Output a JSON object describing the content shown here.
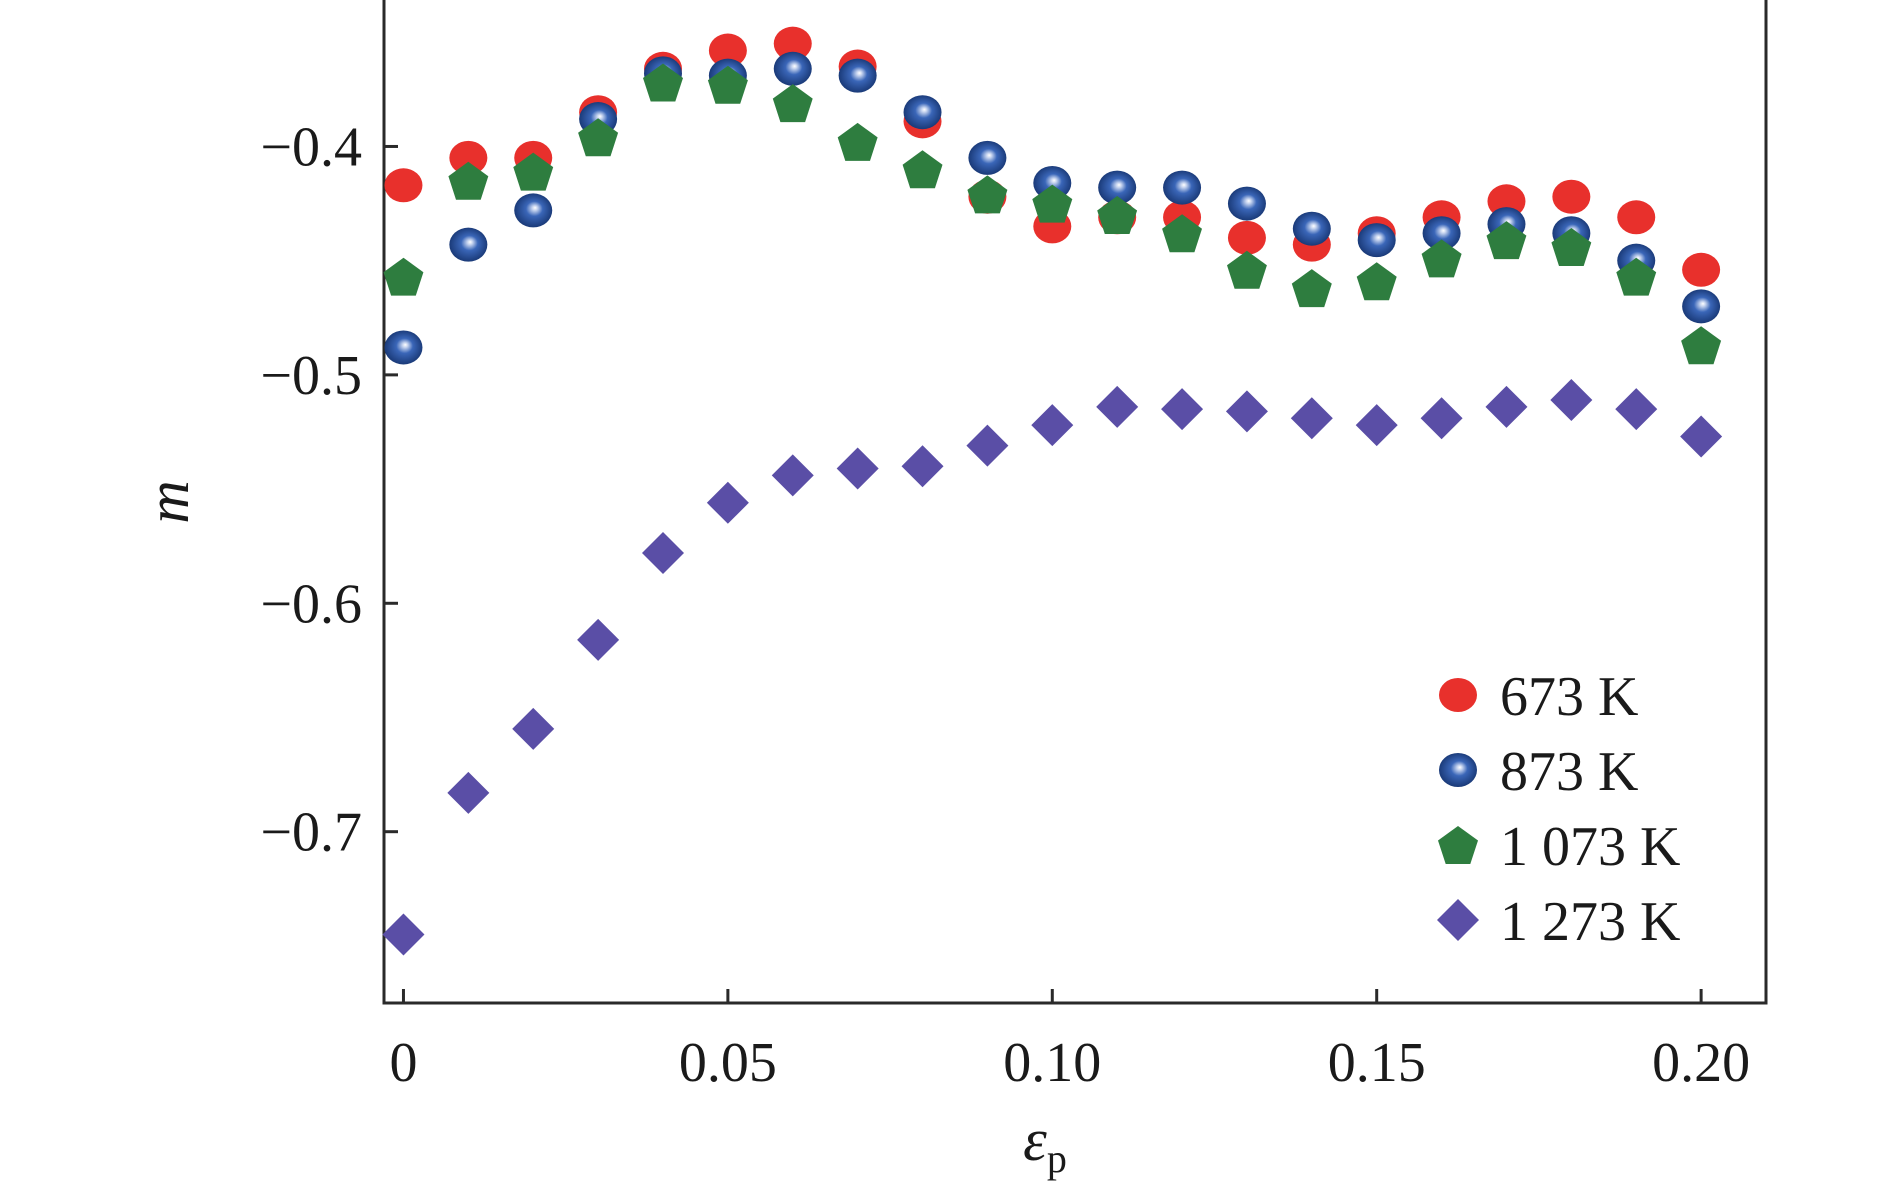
{
  "chart_data": {
    "type": "scatter",
    "xlabel": "ε",
    "xlabel_sub": "p",
    "ylabel": "m",
    "xlim": [
      -0.003,
      0.21
    ],
    "ylim": [
      -0.775,
      -0.335
    ],
    "x_ticks": [
      {
        "value": 0,
        "label": "0"
      },
      {
        "value": 0.05,
        "label": "0.05"
      },
      {
        "value": 0.1,
        "label": "0.10"
      },
      {
        "value": 0.15,
        "label": "0.15"
      },
      {
        "value": 0.2,
        "label": "0.20"
      }
    ],
    "y_ticks": [
      {
        "value": -0.4,
        "label": "−0.4"
      },
      {
        "value": -0.5,
        "label": "−0.5"
      },
      {
        "value": -0.6,
        "label": "−0.6"
      },
      {
        "value": -0.7,
        "label": "−0.7"
      }
    ],
    "grid": false,
    "legend_position": "bottom-right",
    "x": [
      0,
      0.01,
      0.02,
      0.03,
      0.04,
      0.05,
      0.06,
      0.07,
      0.08,
      0.09,
      0.1,
      0.11,
      0.12,
      0.13,
      0.14,
      0.15,
      0.16,
      0.17,
      0.18,
      0.19,
      0.2
    ],
    "series": [
      {
        "name": "673 K",
        "marker": "circle",
        "color": "#e8302c",
        "values": [
          -0.417,
          -0.405,
          -0.405,
          -0.385,
          -0.366,
          -0.358,
          -0.355,
          -0.365,
          -0.389,
          -0.422,
          -0.435,
          -0.431,
          -0.431,
          -0.44,
          -0.443,
          -0.438,
          -0.431,
          -0.424,
          -0.422,
          -0.431,
          -0.454
        ]
      },
      {
        "name": "873 K",
        "marker": "sphere",
        "color": "#1f4fa0",
        "values": [
          -0.488,
          -0.443,
          -0.428,
          -0.388,
          -0.368,
          -0.369,
          -0.366,
          -0.369,
          -0.385,
          -0.405,
          -0.416,
          -0.418,
          -0.418,
          -0.425,
          -0.436,
          -0.441,
          -0.438,
          -0.434,
          -0.438,
          -0.45,
          -0.47
        ]
      },
      {
        "name": "1 073 K",
        "marker": "pentagon",
        "color": "#2e7d3f",
        "values": [
          -0.457,
          -0.415,
          -0.411,
          -0.396,
          -0.372,
          -0.373,
          -0.381,
          -0.398,
          -0.41,
          -0.421,
          -0.425,
          -0.43,
          -0.438,
          -0.454,
          -0.462,
          -0.459,
          -0.449,
          -0.441,
          -0.444,
          -0.457,
          -0.487
        ]
      },
      {
        "name": "1 273 K",
        "marker": "diamond",
        "color": "#5a4ea6",
        "values": [
          -0.745,
          -0.683,
          -0.655,
          -0.616,
          -0.578,
          -0.556,
          -0.544,
          -0.541,
          -0.54,
          -0.531,
          -0.522,
          -0.514,
          -0.515,
          -0.516,
          -0.519,
          -0.522,
          -0.519,
          -0.514,
          -0.511,
          -0.515,
          -0.527
        ]
      }
    ]
  }
}
